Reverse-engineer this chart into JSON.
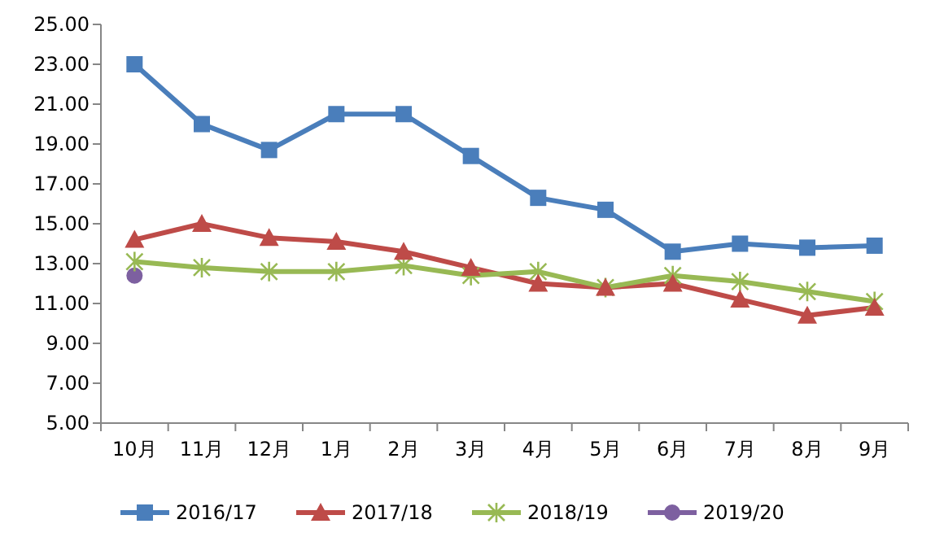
{
  "chart_data": {
    "type": "line",
    "categories": [
      "10月",
      "11月",
      "12月",
      "1月",
      "2月",
      "3月",
      "4月",
      "5月",
      "6月",
      "7月",
      "8月",
      "9月"
    ],
    "series": [
      {
        "name": "2016/17",
        "color": "#4a7ebb",
        "marker": "square",
        "values": [
          23.0,
          20.0,
          18.7,
          20.5,
          20.5,
          18.4,
          16.3,
          15.7,
          13.6,
          14.0,
          13.8,
          13.9
        ]
      },
      {
        "name": "2017/18",
        "color": "#be4b48",
        "marker": "triangle",
        "values": [
          14.2,
          15.0,
          14.3,
          14.1,
          13.6,
          12.8,
          12.0,
          11.8,
          12.0,
          11.2,
          10.4,
          10.8
        ]
      },
      {
        "name": "2018/19",
        "color": "#98b954",
        "marker": "cross",
        "values": [
          13.1,
          12.8,
          12.6,
          12.6,
          12.9,
          12.4,
          12.6,
          11.8,
          12.4,
          12.1,
          11.6,
          11.1
        ]
      },
      {
        "name": "2019/20",
        "color": "#7d60a0",
        "marker": "circle",
        "values": [
          12.4,
          null,
          null,
          null,
          null,
          null,
          null,
          null,
          null,
          null,
          null,
          null
        ]
      }
    ],
    "ylim": [
      5,
      25
    ],
    "yticks": [
      {
        "value": 5,
        "label": "5.00"
      },
      {
        "value": 7,
        "label": "7.00"
      },
      {
        "value": 9,
        "label": "9.00"
      },
      {
        "value": 11,
        "label": "11.00"
      },
      {
        "value": 13,
        "label": "13.00"
      },
      {
        "value": 15,
        "label": "15.00"
      },
      {
        "value": 17,
        "label": "17.00"
      },
      {
        "value": 19,
        "label": "19.00"
      },
      {
        "value": 21,
        "label": "21.00"
      },
      {
        "value": 23,
        "label": "23.00"
      },
      {
        "value": 25,
        "label": "25.00"
      }
    ],
    "grid": false,
    "legend": "bottom"
  }
}
